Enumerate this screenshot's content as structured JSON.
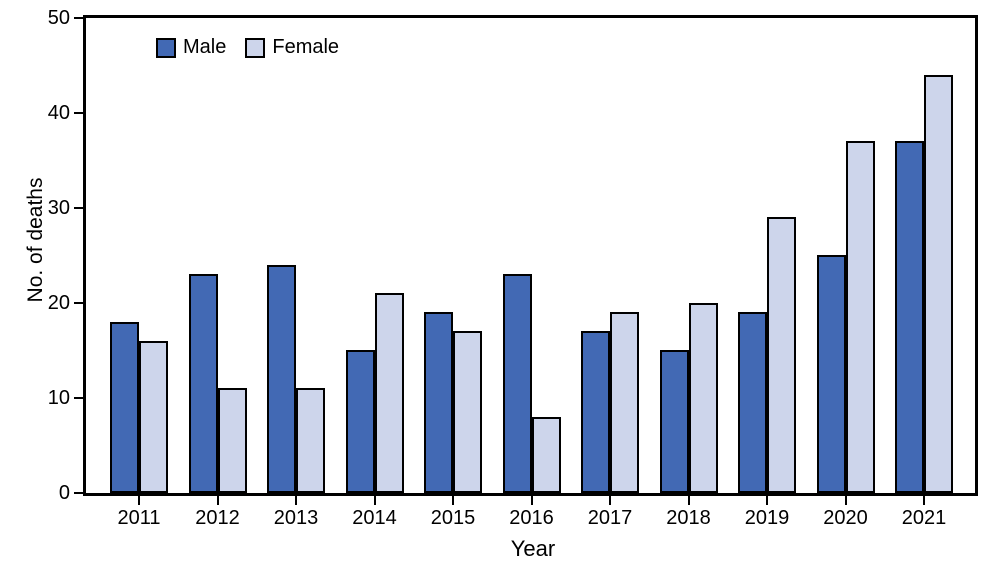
{
  "chart_data": {
    "type": "bar",
    "title": "",
    "categories": [
      "2011",
      "2012",
      "2013",
      "2014",
      "2015",
      "2016",
      "2017",
      "2018",
      "2019",
      "2020",
      "2021"
    ],
    "series": [
      {
        "name": "Male",
        "color": "#4269b4",
        "values": [
          18,
          23,
          24,
          15,
          19,
          23,
          17,
          15,
          19,
          25,
          37
        ]
      },
      {
        "name": "Female",
        "color": "#cdd5eb",
        "values": [
          16,
          11,
          11,
          21,
          17,
          8,
          19,
          20,
          29,
          37,
          44
        ]
      }
    ],
    "xlabel": "Year",
    "ylabel": "No. of deaths",
    "ylim": [
      0,
      50
    ],
    "yticks": [
      0,
      10,
      20,
      30,
      40,
      50
    ],
    "legend_position": "top-left-inside",
    "grid": false,
    "frame": "full-box",
    "bar_border_color": "#000000",
    "axis_color": "#000000",
    "text_color": "#000000",
    "background_color": "#ffffff"
  }
}
